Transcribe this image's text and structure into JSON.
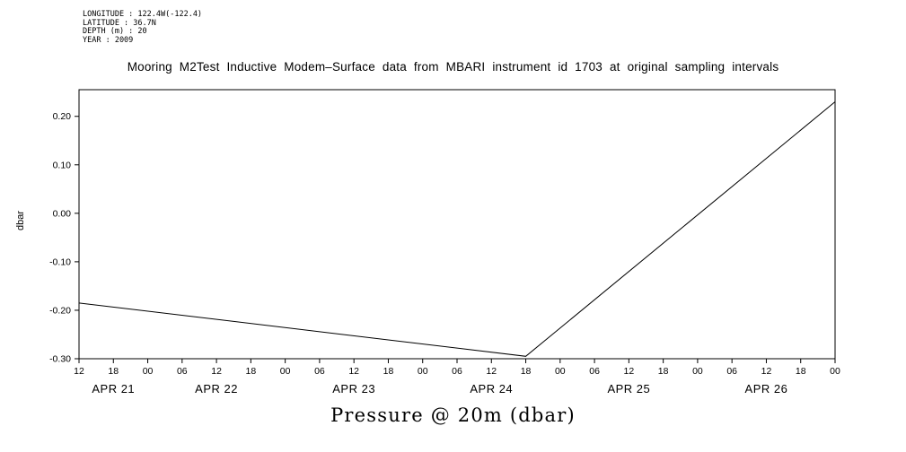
{
  "metadata": {
    "longitude": "LONGITUDE : 122.4W(-122.4)",
    "latitude": "LATITUDE : 36.7N",
    "depth": "DEPTH (m) : 20",
    "year": "YEAR : 2009"
  },
  "chart_data": {
    "type": "line",
    "title": "Mooring M2Test Inductive Modem–Surface data from MBARI instrument id 1703 at original sampling intervals",
    "caption": "Pressure @ 20m (dbar)",
    "xlabel": "",
    "ylabel": "dbar",
    "ylim": [
      -0.3,
      0.255
    ],
    "xlim_hours": [
      0,
      132
    ],
    "x_origin": "2009-04-21 12:00",
    "x_tick_step_hours": 6,
    "x_tick_labels": [
      "12",
      "18",
      "00",
      "06",
      "12",
      "18",
      "00",
      "06",
      "12",
      "18",
      "00",
      "06",
      "12",
      "18",
      "00",
      "06",
      "12",
      "18",
      "00",
      "06",
      "12",
      "18",
      "00"
    ],
    "date_labels": [
      {
        "label": "APR 21",
        "center_hour": 6
      },
      {
        "label": "APR 22",
        "center_hour": 24
      },
      {
        "label": "APR 23",
        "center_hour": 48
      },
      {
        "label": "APR 24",
        "center_hour": 72
      },
      {
        "label": "APR 25",
        "center_hour": 96
      },
      {
        "label": "APR 26",
        "center_hour": 120
      }
    ],
    "y_ticks": [
      "0.20",
      "0.10",
      "0.00",
      "-0.10",
      "-0.20",
      "-0.30"
    ],
    "grid": false,
    "legend": false,
    "series": [
      {
        "name": "pressure",
        "points": [
          {
            "hour": 0,
            "value": -0.185
          },
          {
            "hour": 78,
            "value": -0.295
          },
          {
            "hour": 132,
            "value": 0.23
          }
        ]
      }
    ]
  }
}
